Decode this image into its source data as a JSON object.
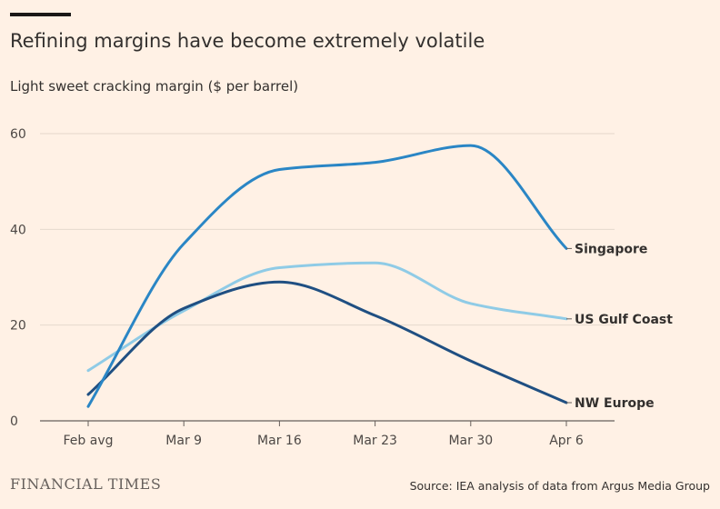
{
  "header": {
    "title": "Refining margins have become extremely volatile",
    "subtitle": "Light sweet cracking margin ($ per barrel)"
  },
  "footer": {
    "brand": "FINANCIAL TIMES",
    "source": "Source: IEA analysis of data from Argus Media Group"
  },
  "chart_data": {
    "type": "line",
    "title": "Refining margins have become extremely volatile",
    "ylabel": "Light sweet cracking margin ($ per barrel)",
    "xlabel": "",
    "categories": [
      "Feb avg",
      "Mar 9",
      "Mar 16",
      "Mar 23",
      "Mar 30",
      "Apr 6"
    ],
    "ylim": [
      0,
      60
    ],
    "yticks": [
      0,
      20,
      40,
      60
    ],
    "grid": true,
    "legend": "direct labels at line ends",
    "series": [
      {
        "name": "Singapore",
        "color": "#2a86c5",
        "values": [
          3,
          37,
          52.5,
          54,
          57.5,
          36
        ]
      },
      {
        "name": "US Gulf Coast",
        "color": "#8fcbe6",
        "values": [
          10.5,
          23,
          32,
          33,
          24.5,
          21.3
        ]
      },
      {
        "name": "NW Europe",
        "color": "#1f4f82",
        "values": [
          5.5,
          23.5,
          29,
          22,
          12.5,
          3.8
        ]
      }
    ]
  }
}
